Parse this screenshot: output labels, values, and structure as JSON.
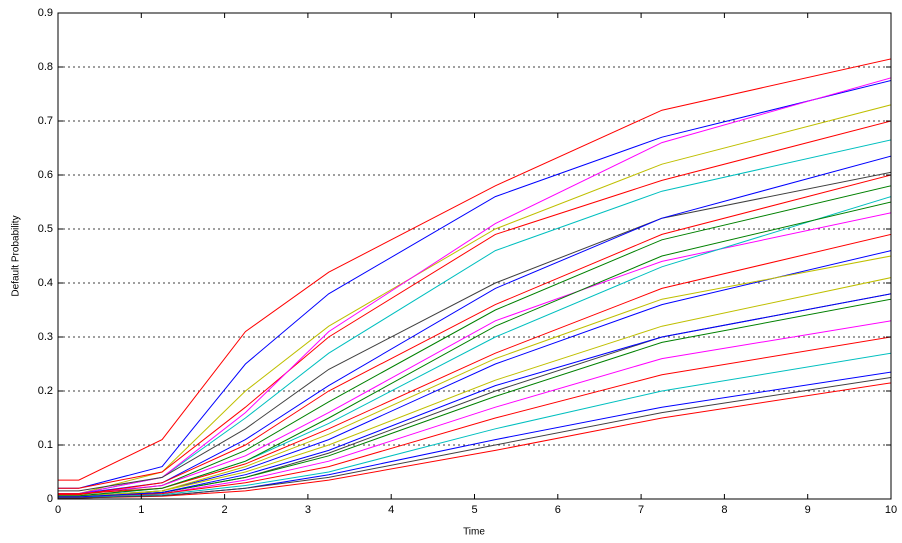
{
  "chart_data": {
    "type": "line",
    "xlabel": "Time",
    "ylabel": "Default Probability",
    "x": [
      0,
      0.25,
      1.25,
      2.25,
      3.25,
      5.25,
      7.25,
      10
    ],
    "xlim": [
      0,
      10
    ],
    "xticks": [
      0,
      1,
      2,
      3,
      4,
      5,
      6,
      7,
      8,
      9,
      10
    ],
    "ylim": [
      0,
      0.9
    ],
    "yticks": [
      0,
      0.1,
      0.2,
      0.3,
      0.4,
      0.5,
      0.6,
      0.7,
      0.8,
      0.9
    ],
    "grid": true,
    "series": [
      {
        "color": "#ff0000",
        "values": [
          0.035,
          0.035,
          0.11,
          0.31,
          0.42,
          0.58,
          0.72,
          0.815
        ]
      },
      {
        "color": "#0000ff",
        "values": [
          0.02,
          0.02,
          0.06,
          0.25,
          0.38,
          0.56,
          0.67,
          0.775
        ]
      },
      {
        "color": "#bfbf00",
        "values": [
          0.01,
          0.01,
          0.05,
          0.2,
          0.32,
          0.5,
          0.62,
          0.73
        ]
      },
      {
        "color": "#00bfbf",
        "values": [
          0.01,
          0.01,
          0.04,
          0.15,
          0.27,
          0.46,
          0.57,
          0.665
        ]
      },
      {
        "color": "#ff0000",
        "values": [
          0.02,
          0.02,
          0.05,
          0.17,
          0.3,
          0.49,
          0.59,
          0.7
        ]
      },
      {
        "color": "#ff00ff",
        "values": [
          0.01,
          0.01,
          0.04,
          0.16,
          0.31,
          0.51,
          0.66,
          0.78
        ]
      },
      {
        "color": "#404040",
        "values": [
          0.015,
          0.015,
          0.04,
          0.13,
          0.24,
          0.4,
          0.52,
          0.605
        ]
      },
      {
        "color": "#0000ff",
        "values": [
          0.01,
          0.01,
          0.03,
          0.11,
          0.21,
          0.39,
          0.52,
          0.635
        ]
      },
      {
        "color": "#008000",
        "values": [
          0.008,
          0.008,
          0.025,
          0.09,
          0.18,
          0.35,
          0.48,
          0.58
        ]
      },
      {
        "color": "#ff00ff",
        "values": [
          0.01,
          0.01,
          0.025,
          0.08,
          0.16,
          0.33,
          0.44,
          0.53
        ]
      },
      {
        "color": "#00bfbf",
        "values": [
          0.005,
          0.005,
          0.02,
          0.07,
          0.14,
          0.3,
          0.43,
          0.56
        ]
      },
      {
        "color": "#ff0000",
        "values": [
          0.01,
          0.01,
          0.02,
          0.065,
          0.13,
          0.27,
          0.39,
          0.49
        ]
      },
      {
        "color": "#0000ff",
        "values": [
          0.005,
          0.005,
          0.015,
          0.055,
          0.11,
          0.25,
          0.36,
          0.46
        ]
      },
      {
        "color": "#bfbf00",
        "values": [
          0.005,
          0.005,
          0.015,
          0.05,
          0.1,
          0.22,
          0.32,
          0.41
        ]
      },
      {
        "color": "#404040",
        "values": [
          0.005,
          0.005,
          0.012,
          0.04,
          0.085,
          0.2,
          0.3,
          0.38
        ]
      },
      {
        "color": "#008000",
        "values": [
          0.004,
          0.004,
          0.012,
          0.04,
          0.08,
          0.19,
          0.29,
          0.37
        ]
      },
      {
        "color": "#ff00ff",
        "values": [
          0.004,
          0.004,
          0.01,
          0.035,
          0.07,
          0.17,
          0.26,
          0.33
        ]
      },
      {
        "color": "#ff0000",
        "values": [
          0.003,
          0.003,
          0.01,
          0.03,
          0.06,
          0.15,
          0.23,
          0.3
        ]
      },
      {
        "color": "#00bfbf",
        "values": [
          0.003,
          0.003,
          0.008,
          0.025,
          0.05,
          0.13,
          0.2,
          0.27
        ]
      },
      {
        "color": "#0000ff",
        "values": [
          0.002,
          0.002,
          0.006,
          0.02,
          0.045,
          0.11,
          0.17,
          0.235
        ]
      },
      {
        "color": "#ff0000",
        "values": [
          0.002,
          0.002,
          0.005,
          0.015,
          0.035,
          0.09,
          0.15,
          0.215
        ]
      },
      {
        "color": "#404040",
        "values": [
          0.002,
          0.002,
          0.006,
          0.02,
          0.04,
          0.1,
          0.16,
          0.225
        ]
      },
      {
        "color": "#008000",
        "values": [
          0.006,
          0.006,
          0.02,
          0.07,
          0.15,
          0.32,
          0.45,
          0.55
        ]
      },
      {
        "color": "#bfbf00",
        "values": [
          0.004,
          0.004,
          0.015,
          0.06,
          0.12,
          0.26,
          0.37,
          0.45
        ]
      },
      {
        "color": "#ff0000",
        "values": [
          0.008,
          0.008,
          0.03,
          0.1,
          0.2,
          0.36,
          0.49,
          0.6
        ]
      },
      {
        "color": "#0000ff",
        "values": [
          0.004,
          0.004,
          0.012,
          0.045,
          0.09,
          0.21,
          0.3,
          0.38
        ]
      }
    ]
  }
}
